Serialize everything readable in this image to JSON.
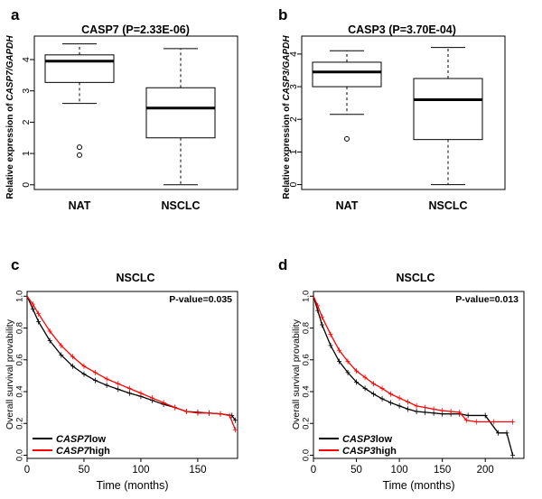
{
  "chart_data": [
    {
      "panel": "a",
      "type": "box",
      "title": "CASP7 (P=2.33E-06)",
      "ylabel_prefix": "Relative expression of ",
      "ylabel_italic": "CASP7/GAPDH",
      "categories": [
        "NAT",
        "NSCLC"
      ],
      "yticks": [
        "0",
        "1",
        "2",
        "3",
        "4"
      ],
      "ylim": [
        -0.15,
        4.75
      ],
      "boxes": [
        {
          "name": "NAT",
          "whisker_low": 2.6,
          "q1": 3.27,
          "median": 3.95,
          "q3": 4.15,
          "whisker_high": 4.5,
          "outliers": [
            1.2,
            0.95
          ]
        },
        {
          "name": "NSCLC",
          "whisker_low": 0.0,
          "q1": 1.5,
          "median": 2.45,
          "q3": 3.1,
          "whisker_high": 4.35,
          "outliers": []
        }
      ]
    },
    {
      "panel": "b",
      "type": "box",
      "title": "CASP3 (P=3.70E-04)",
      "ylabel_prefix": "Relative expression of ",
      "ylabel_italic": "CASP3/GAPDH",
      "categories": [
        "NAT",
        "NSCLC"
      ],
      "yticks": [
        "0",
        "1",
        "2",
        "3",
        "4"
      ],
      "ylim": [
        -0.15,
        4.55
      ],
      "boxes": [
        {
          "name": "NAT",
          "whisker_low": 2.15,
          "q1": 3.0,
          "median": 3.45,
          "q3": 3.75,
          "whisker_high": 4.1,
          "outliers": [
            1.4
          ]
        },
        {
          "name": "NSCLC",
          "whisker_low": 0.0,
          "q1": 1.38,
          "median": 2.6,
          "q3": 3.25,
          "whisker_high": 4.2,
          "outliers": []
        }
      ]
    },
    {
      "panel": "c",
      "type": "line",
      "title": "NSCLC",
      "xlabel": "Time (months)",
      "ylabel": "Overall survival provability",
      "annotation": "P-value=0.035",
      "xticks": [
        "0",
        "50",
        "100",
        "150"
      ],
      "yticks": [
        "0.0",
        "0.2",
        "0.4",
        "0.6",
        "0.8",
        "1.0"
      ],
      "xlim": [
        0,
        185
      ],
      "ylim": [
        -0.02,
        1.03
      ],
      "series": [
        {
          "name_italic": "CASP7",
          "name_suffix": "low",
          "color": "#000000",
          "x": [
            0,
            5,
            10,
            20,
            30,
            40,
            50,
            60,
            70,
            80,
            90,
            100,
            110,
            120,
            130,
            140,
            150,
            160,
            170,
            180,
            183
          ],
          "y": [
            1.0,
            0.92,
            0.84,
            0.72,
            0.63,
            0.56,
            0.51,
            0.47,
            0.44,
            0.415,
            0.39,
            0.37,
            0.345,
            0.32,
            0.3,
            0.275,
            0.27,
            0.265,
            0.26,
            0.25,
            0.22
          ]
        },
        {
          "name_italic": "CASP7",
          "name_suffix": "high",
          "color": "#ff0000",
          "x": [
            0,
            5,
            10,
            20,
            30,
            40,
            50,
            60,
            70,
            80,
            90,
            100,
            110,
            120,
            130,
            140,
            150,
            160,
            170,
            178,
            183
          ],
          "y": [
            1.0,
            0.95,
            0.89,
            0.78,
            0.69,
            0.62,
            0.56,
            0.52,
            0.48,
            0.45,
            0.42,
            0.39,
            0.36,
            0.33,
            0.3,
            0.275,
            0.265,
            0.265,
            0.26,
            0.25,
            0.16
          ]
        }
      ],
      "legend": "bottom-left"
    },
    {
      "panel": "d",
      "type": "line",
      "title": "NSCLC",
      "xlabel": "Time (months)",
      "ylabel": "Overall survival provability",
      "annotation": "P-value=0.013",
      "xticks": [
        "0",
        "50",
        "100",
        "150",
        "200"
      ],
      "yticks": [
        "0.0",
        "0.2",
        "0.4",
        "0.6",
        "0.8",
        "1.0"
      ],
      "xlim": [
        0,
        245
      ],
      "ylim": [
        -0.02,
        1.03
      ],
      "series": [
        {
          "name_italic": "CASP3",
          "name_suffix": "low",
          "color": "#000000",
          "x": [
            0,
            5,
            10,
            20,
            30,
            40,
            50,
            60,
            70,
            80,
            90,
            100,
            110,
            120,
            130,
            140,
            150,
            160,
            170,
            180,
            200,
            215,
            225,
            232
          ],
          "y": [
            1.0,
            0.91,
            0.82,
            0.69,
            0.59,
            0.52,
            0.46,
            0.42,
            0.385,
            0.355,
            0.33,
            0.31,
            0.29,
            0.275,
            0.27,
            0.265,
            0.26,
            0.26,
            0.26,
            0.25,
            0.25,
            0.14,
            0.14,
            0.0
          ]
        },
        {
          "name_italic": "CASP3",
          "name_suffix": "high",
          "color": "#ff0000",
          "x": [
            0,
            5,
            10,
            20,
            30,
            40,
            50,
            60,
            70,
            80,
            90,
            100,
            110,
            120,
            130,
            140,
            150,
            160,
            170,
            178,
            190,
            210,
            232
          ],
          "y": [
            1.0,
            0.94,
            0.87,
            0.76,
            0.66,
            0.59,
            0.53,
            0.49,
            0.45,
            0.42,
            0.385,
            0.36,
            0.335,
            0.31,
            0.3,
            0.29,
            0.28,
            0.275,
            0.27,
            0.22,
            0.21,
            0.21,
            0.21
          ]
        }
      ],
      "legend": "bottom-left"
    }
  ],
  "panel_labels": [
    "a",
    "b",
    "c",
    "d"
  ]
}
